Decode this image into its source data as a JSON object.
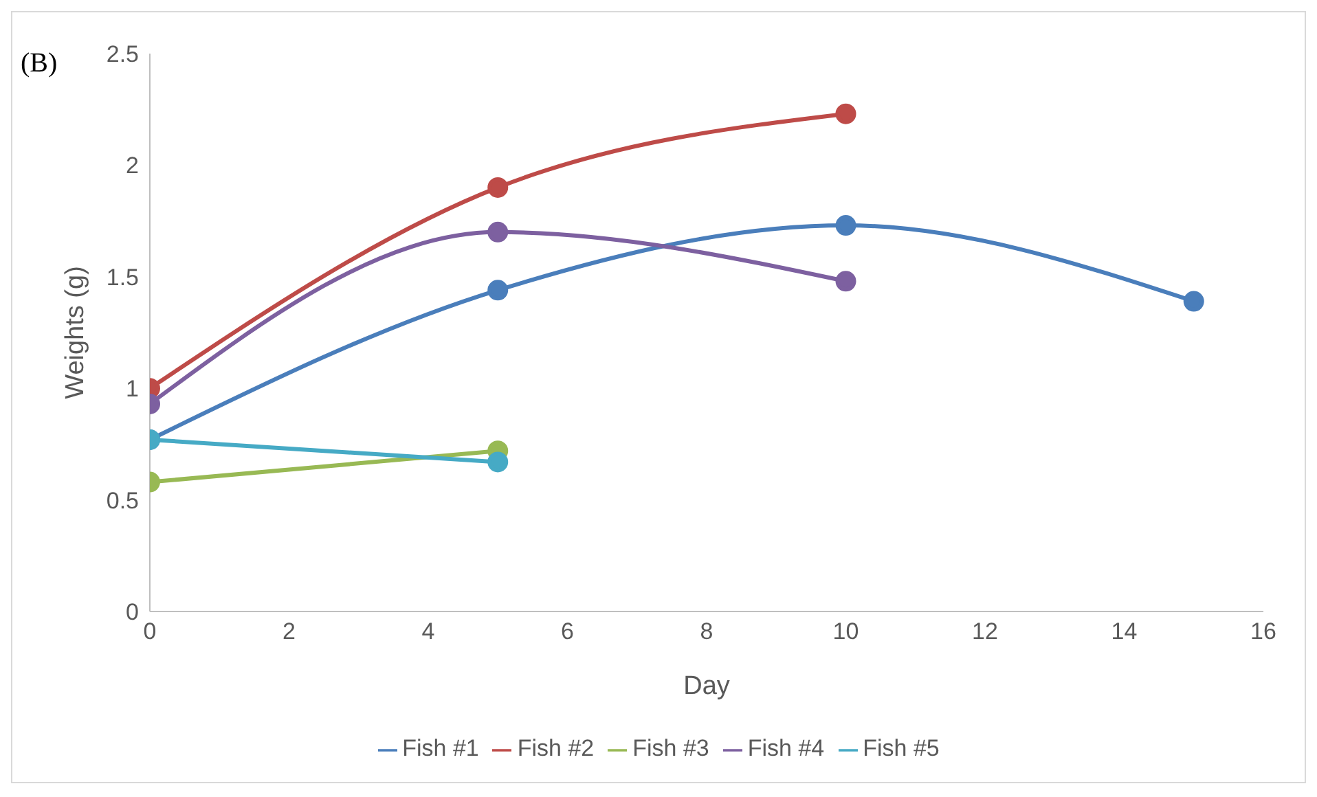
{
  "chart_data": {
    "type": "line",
    "xlabel": "Day",
    "ylabel": "Weights (g)",
    "annotations": [
      "(B)"
    ],
    "x": [
      0,
      5,
      10,
      15
    ],
    "series": [
      {
        "name": "Fish #1",
        "color": "#4a7ebb",
        "values": [
          0.77,
          1.44,
          1.73,
          1.39
        ]
      },
      {
        "name": "Fish #2",
        "color": "#be4b48",
        "values": [
          1.0,
          1.9,
          2.23,
          null
        ]
      },
      {
        "name": "Fish #3",
        "color": "#98b954",
        "values": [
          0.58,
          0.72,
          null,
          null
        ]
      },
      {
        "name": "Fish #4",
        "color": "#7d60a0",
        "values": [
          0.93,
          1.7,
          1.48,
          null
        ]
      },
      {
        "name": "Fish #5",
        "color": "#46aac5",
        "values": [
          0.77,
          0.67,
          null,
          null
        ]
      }
    ],
    "xlim": [
      0,
      16
    ],
    "xticks": [
      0,
      2,
      4,
      6,
      8,
      10,
      12,
      14,
      16
    ],
    "ylim": [
      0,
      2.5
    ],
    "yticks": [
      0,
      0.5,
      1,
      1.5,
      2,
      2.5
    ],
    "legend": "bottom",
    "marker": "circle",
    "line_style": "solid"
  }
}
